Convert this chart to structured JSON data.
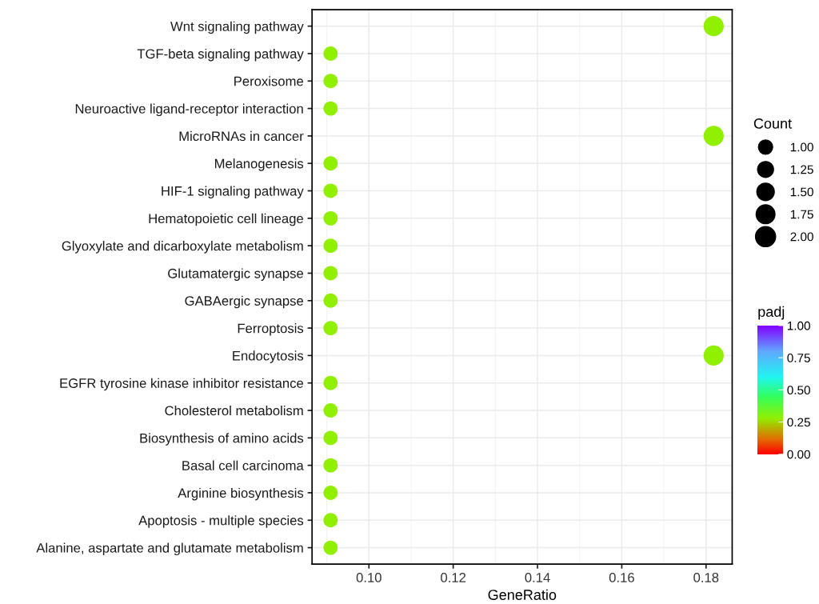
{
  "chart_data": {
    "type": "bubble",
    "orientation": "horizontal",
    "xlabel": "GeneRatio",
    "legend_title": "Count",
    "clabel": "padj",
    "categories": [
      "Wnt signaling pathway",
      "TGF-beta signaling pathway",
      "Peroxisome",
      "Neuroactive ligand-receptor interaction",
      "MicroRNAs in cancer",
      "Melanogenesis",
      "HIF-1 signaling pathway",
      "Hematopoietic cell lineage",
      "Glyoxylate and dicarboxylate metabolism",
      "Glutamatergic synapse",
      "GABAergic synapse",
      "Ferroptosis",
      "Endocytosis",
      "EGFR tyrosine kinase inhibitor resistance",
      "Cholesterol metabolism",
      "Biosynthesis of amino acids",
      "Basal cell carcinoma",
      "Arginine biosynthesis",
      "Apoptosis - multiple species",
      "Alanine, aspartate and glutamate metabolism"
    ],
    "values": [
      0.1818,
      0.0909,
      0.0909,
      0.0909,
      0.1818,
      0.0909,
      0.0909,
      0.0909,
      0.0909,
      0.0909,
      0.0909,
      0.0909,
      0.1818,
      0.0909,
      0.0909,
      0.0909,
      0.0909,
      0.0909,
      0.0909,
      0.0909
    ],
    "sizes": [
      2,
      1,
      1,
      1,
      2,
      1,
      1,
      1,
      1,
      1,
      1,
      1,
      2,
      1,
      1,
      1,
      1,
      1,
      1,
      1
    ],
    "cvalues": [
      0.28,
      0.28,
      0.28,
      0.28,
      0.28,
      0.28,
      0.28,
      0.28,
      0.28,
      0.28,
      0.28,
      0.28,
      0.28,
      0.28,
      0.28,
      0.28,
      0.28,
      0.28,
      0.28,
      0.28
    ],
    "size_legend": [
      {
        "value": 1,
        "label": "1.00"
      },
      {
        "value": 1.25,
        "label": "1.25"
      },
      {
        "value": 1.5,
        "label": "1.50"
      },
      {
        "value": 1.75,
        "label": "1.75"
      },
      {
        "value": 2,
        "label": "2.00"
      }
    ],
    "xlim": [
      0.0865,
      0.1862
    ],
    "xticks": [
      {
        "value": 0.1,
        "label": "0.10"
      },
      {
        "value": 0.12,
        "label": "0.12"
      },
      {
        "value": 0.14,
        "label": "0.14"
      },
      {
        "value": 0.16,
        "label": "0.16"
      },
      {
        "value": 0.18,
        "label": "0.18"
      }
    ],
    "clim": [
      0,
      1
    ],
    "cticks": [
      {
        "value": 0,
        "label": "0.00"
      },
      {
        "value": 0.25,
        "label": "0.25"
      },
      {
        "value": 0.5,
        "label": "0.50"
      },
      {
        "value": 0.75,
        "label": "0.75"
      },
      {
        "value": 1,
        "label": "1.00"
      }
    ],
    "grid": true
  }
}
